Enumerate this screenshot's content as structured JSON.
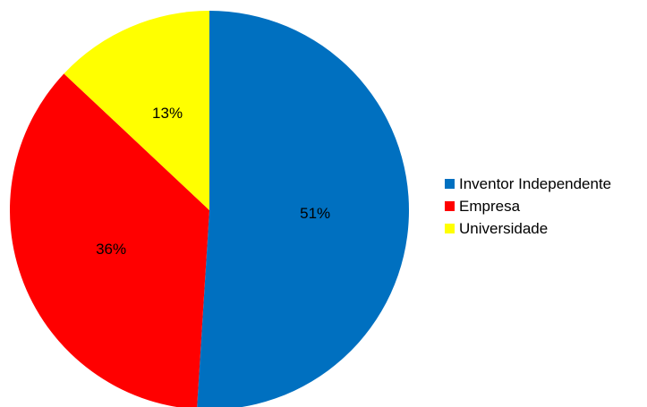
{
  "chart_data": {
    "type": "pie",
    "slices": [
      {
        "label": "Inventor Independente",
        "value": 51,
        "display": "51%",
        "color": "#0070c0"
      },
      {
        "label": "Empresa",
        "value": 36,
        "display": "36%",
        "color": "#ff0000"
      },
      {
        "label": "Universidade",
        "value": 13,
        "display": "13%",
        "color": "#ffff00"
      }
    ],
    "start": "top, clockwise",
    "legend_position": "right"
  }
}
